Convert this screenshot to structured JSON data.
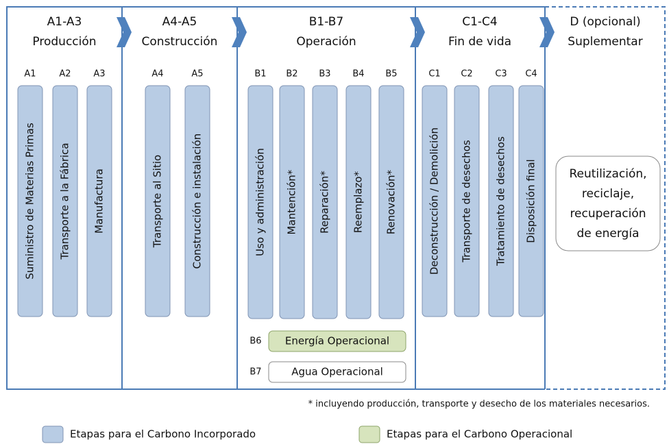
{
  "columns": [
    {
      "header": "A1-A3",
      "subheader": "Producción",
      "stages": [
        {
          "code": "A1",
          "label": "Suministro de Materias Primas"
        },
        {
          "code": "A2",
          "label": "Transporte a la Fábrica"
        },
        {
          "code": "A3",
          "label": "Manufactura"
        }
      ]
    },
    {
      "header": "A4-A5",
      "subheader": "Construcción",
      "stages": [
        {
          "code": "A4",
          "label": "Transporte al Sitio"
        },
        {
          "code": "A5",
          "label": "Construcción e instalación"
        }
      ]
    },
    {
      "header": "B1-B7",
      "subheader": "Operación",
      "stages": [
        {
          "code": "B1",
          "label": "Uso y administración"
        },
        {
          "code": "B2",
          "label": "Mantención*"
        },
        {
          "code": "B3",
          "label": "Reparación*"
        },
        {
          "code": "B4",
          "label": "Reemplazo*"
        },
        {
          "code": "B5",
          "label": "Renovación*"
        }
      ],
      "rows": [
        {
          "code": "B6",
          "label": "Energía Operacional"
        },
        {
          "code": "B7",
          "label": "Agua Operacional"
        }
      ]
    },
    {
      "header": "C1-C4",
      "subheader": "Fin de vida",
      "stages": [
        {
          "code": "C1",
          "label": "Deconstrucción / Demolición"
        },
        {
          "code": "C2",
          "label": "Transporte de desechos"
        },
        {
          "code": "C3",
          "label": "Tratamiento de desechos"
        },
        {
          "code": "C4",
          "label": "Disposición final"
        }
      ]
    },
    {
      "header": "D (opcional)",
      "subheader": "Suplementar",
      "box": [
        "Reutilización,",
        "reciclaje,",
        "recuperación",
        "de energía"
      ]
    }
  ],
  "footnote": "* incluyendo producción, transporte y desecho de los materiales necesarios.",
  "legend": [
    {
      "label": "Etapas para el Carbono Incorporado"
    },
    {
      "label": "Etapas para el Carbono Operacional"
    }
  ]
}
